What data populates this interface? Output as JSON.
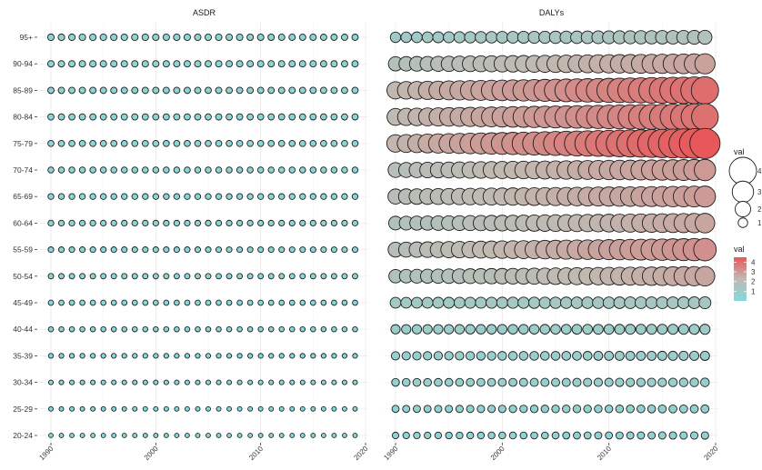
{
  "chart_data": {
    "type": "scatter",
    "kind": "bubble-matrix",
    "years": [
      1990,
      1991,
      1992,
      1993,
      1994,
      1995,
      1996,
      1997,
      1998,
      1999,
      2000,
      2001,
      2002,
      2003,
      2004,
      2005,
      2006,
      2007,
      2008,
      2009,
      2010,
      2011,
      2012,
      2013,
      2014,
      2015,
      2016,
      2017,
      2018,
      2019
    ],
    "x_ticks": [
      "1990",
      "2000",
      "2010",
      "2020"
    ],
    "xlim": [
      1990,
      2020
    ],
    "age_groups": [
      "95+",
      "90-94",
      "85-89",
      "80-84",
      "75-79",
      "70-74",
      "65-69",
      "60-64",
      "55-59",
      "50-54",
      "45-49",
      "40-44",
      "35-39",
      "30-34",
      "25-29",
      "20-24"
    ],
    "panels": [
      {
        "title": "ASDR",
        "start": [
          0.5,
          0.48,
          0.46,
          0.44,
          0.43,
          0.4,
          0.38,
          0.36,
          0.34,
          0.31,
          0.28,
          0.25,
          0.21,
          0.18,
          0.16,
          0.14
        ],
        "end": [
          0.46,
          0.45,
          0.44,
          0.43,
          0.42,
          0.39,
          0.37,
          0.35,
          0.33,
          0.3,
          0.27,
          0.24,
          0.2,
          0.17,
          0.15,
          0.13
        ]
      },
      {
        "title": "DALYs",
        "start": [
          1.15,
          1.8,
          2.3,
          2.25,
          2.35,
          1.9,
          1.95,
          1.7,
          1.9,
          1.65,
          1.2,
          0.95,
          0.8,
          0.7,
          0.6,
          0.5
        ],
        "end": [
          1.75,
          2.8,
          4.0,
          3.9,
          4.5,
          3.0,
          2.95,
          2.7,
          3.2,
          2.7,
          1.4,
          1.1,
          0.95,
          0.85,
          0.75,
          0.65
        ]
      }
    ],
    "legend_size": {
      "title": "val",
      "entries": [
        "4",
        "3",
        "2",
        "1"
      ],
      "values": [
        4,
        3,
        2,
        1
      ]
    },
    "legend_color": {
      "title": "val",
      "ticks": [
        "4",
        "3",
        "2",
        "1"
      ],
      "values": [
        4,
        3,
        2,
        1
      ],
      "range": [
        0,
        4.5
      ],
      "low_color": "#7fdbdc",
      "mid_color": "#c0bab2",
      "high_color": "#e8575a"
    },
    "grid": true
  }
}
